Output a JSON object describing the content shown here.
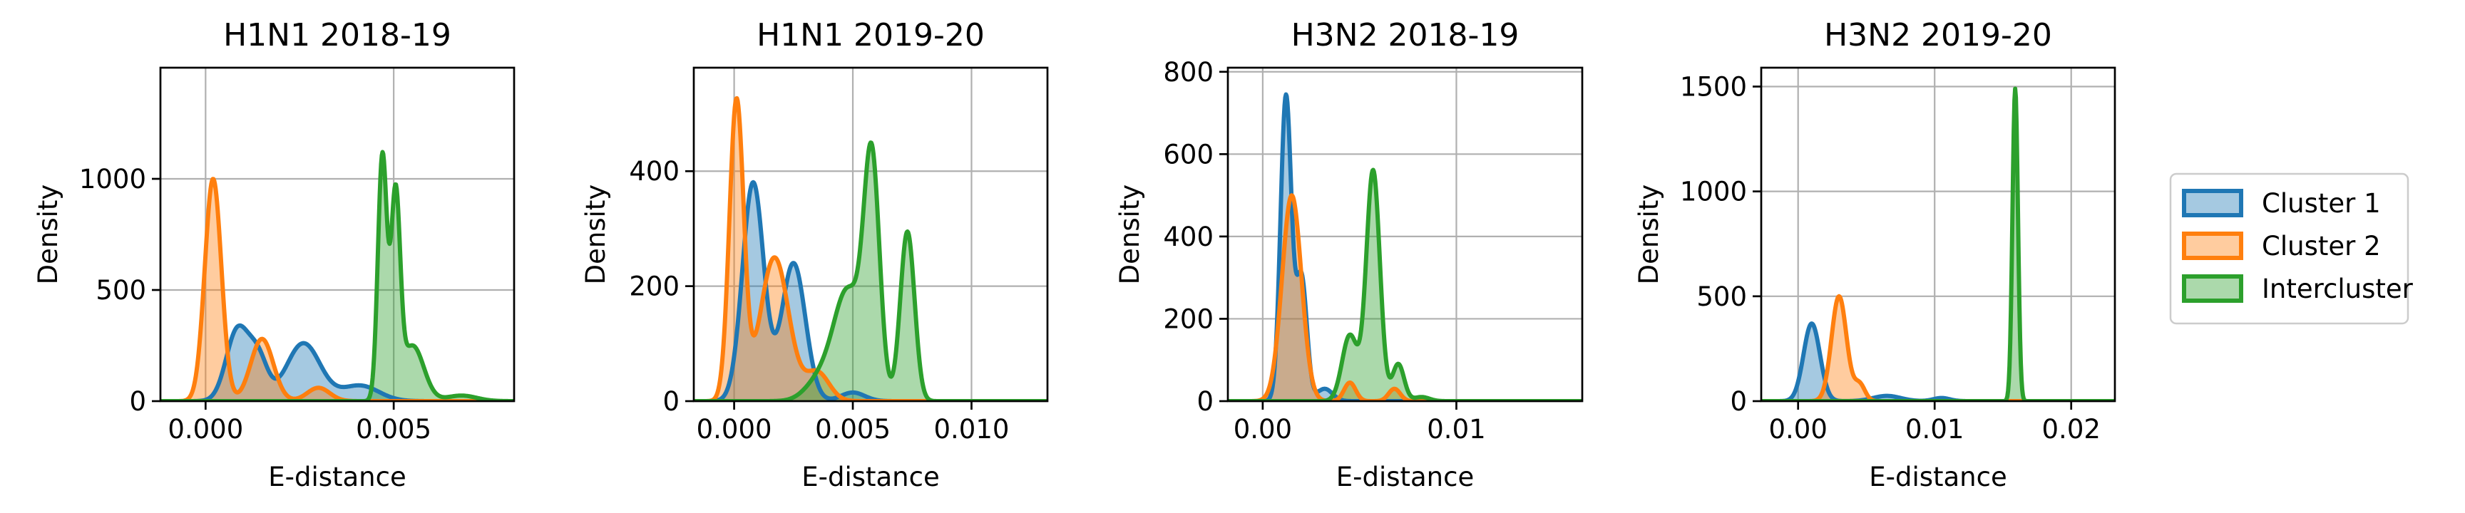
{
  "colors": {
    "cluster1": "#1f77b4",
    "cluster2": "#ff7f0e",
    "intercluster": "#2ca02c"
  },
  "legend": {
    "placement": "right",
    "entries": [
      "Cluster 1",
      "Cluster 2",
      "Intercluster"
    ]
  },
  "chart_data": [
    {
      "type": "area",
      "title": "H1N1 2018-19",
      "xlabel": "E-distance",
      "ylabel": "Density",
      "xlim": [
        -0.0012,
        0.0082
      ],
      "ylim": [
        0,
        1500
      ],
      "xticks": [
        0,
        0.005
      ],
      "xticklabels": [
        "0.000",
        "0.005"
      ],
      "yticks": [
        0,
        500,
        1000
      ],
      "yticklabels": [
        "0",
        "500",
        "1000"
      ],
      "grid": true,
      "series": [
        {
          "name": "Cluster 1",
          "components": [
            [
              320,
              0.00085,
              0.0003
            ],
            [
              180,
              0.0014,
              0.00025
            ],
            [
              260,
              0.0026,
              0.00045
            ],
            [
              70,
              0.0041,
              0.0005
            ]
          ]
        },
        {
          "name": "Cluster 2",
          "components": [
            [
              1000,
              0.0002,
              0.00022
            ],
            [
              280,
              0.0015,
              0.0003
            ],
            [
              60,
              0.003,
              0.0003
            ]
          ]
        },
        {
          "name": "Intercluster",
          "components": [
            [
              1100,
              0.0047,
              0.00012
            ],
            [
              880,
              0.00505,
              0.00012
            ],
            [
              250,
              0.0055,
              0.0003
            ],
            [
              25,
              0.0068,
              0.0004
            ]
          ]
        }
      ]
    },
    {
      "type": "area",
      "title": "H1N1 2019-20",
      "xlabel": "E-distance",
      "ylabel": "Density",
      "xlim": [
        -0.0017,
        0.0132
      ],
      "ylim": [
        0,
        580
      ],
      "xticks": [
        0,
        0.005,
        0.01
      ],
      "xticklabels": [
        "0.000",
        "0.005",
        "0.010"
      ],
      "yticks": [
        0,
        200,
        400
      ],
      "yticklabels": [
        "0",
        "200",
        "400"
      ],
      "grid": true,
      "series": [
        {
          "name": "Cluster 1",
          "components": [
            [
              380,
              0.0008,
              0.00045
            ],
            [
              240,
              0.0025,
              0.0005
            ],
            [
              15,
              0.005,
              0.0005
            ]
          ]
        },
        {
          "name": "Cluster 2",
          "components": [
            [
              520,
              0.0001,
              0.0003
            ],
            [
              250,
              0.0017,
              0.0006
            ],
            [
              50,
              0.0035,
              0.0005
            ]
          ]
        },
        {
          "name": "Intercluster",
          "components": [
            [
              190,
              0.0048,
              0.0006
            ],
            [
              400,
              0.0058,
              0.00033
            ],
            [
              295,
              0.0073,
              0.0003
            ],
            [
              35,
              0.0036,
              0.0006
            ]
          ]
        }
      ]
    },
    {
      "type": "area",
      "title": "H3N2 2018-19",
      "xlabel": "E-distance",
      "ylabel": "Density",
      "xlim": [
        -0.0018,
        0.0165
      ],
      "ylim": [
        0,
        810
      ],
      "xticks": [
        0,
        0.01
      ],
      "xticklabels": [
        "0.00",
        "0.01"
      ],
      "yticks": [
        0,
        200,
        400,
        600,
        800
      ],
      "yticklabels": [
        "0",
        "200",
        "400",
        "600",
        "800"
      ],
      "grid": true,
      "series": [
        {
          "name": "Cluster 1",
          "components": [
            [
              740,
              0.0012,
              0.00028
            ],
            [
              300,
              0.002,
              0.00028
            ],
            [
              30,
              0.0032,
              0.0004
            ]
          ]
        },
        {
          "name": "Cluster 2",
          "components": [
            [
              500,
              0.0015,
              0.0005
            ],
            [
              45,
              0.0045,
              0.0003
            ],
            [
              30,
              0.0068,
              0.0003
            ]
          ]
        },
        {
          "name": "Intercluster",
          "components": [
            [
              160,
              0.0045,
              0.0004
            ],
            [
              560,
              0.0057,
              0.00035
            ],
            [
              90,
              0.007,
              0.0003
            ],
            [
              10,
              0.0082,
              0.0004
            ]
          ]
        }
      ]
    },
    {
      "type": "area",
      "title": "H3N2 2019-20",
      "xlabel": "E-distance",
      "ylabel": "Density",
      "xlim": [
        -0.0027,
        0.0232
      ],
      "ylim": [
        0,
        1590
      ],
      "xticks": [
        0,
        0.01,
        0.02
      ],
      "xticklabels": [
        "0.00",
        "0.01",
        "0.02"
      ],
      "yticks": [
        0,
        500,
        1000,
        1500
      ],
      "yticklabels": [
        "0",
        "500",
        "1000",
        "1500"
      ],
      "grid": true,
      "series": [
        {
          "name": "Cluster 1",
          "components": [
            [
              370,
              0.001,
              0.0006
            ],
            [
              25,
              0.0065,
              0.001
            ],
            [
              15,
              0.0105,
              0.0006
            ]
          ]
        },
        {
          "name": "Cluster 2",
          "components": [
            [
              500,
              0.003,
              0.00055
            ],
            [
              80,
              0.0045,
              0.0004
            ]
          ]
        },
        {
          "name": "Intercluster",
          "components": [
            [
              1490,
              0.0159,
              0.0002
            ]
          ]
        }
      ]
    }
  ]
}
